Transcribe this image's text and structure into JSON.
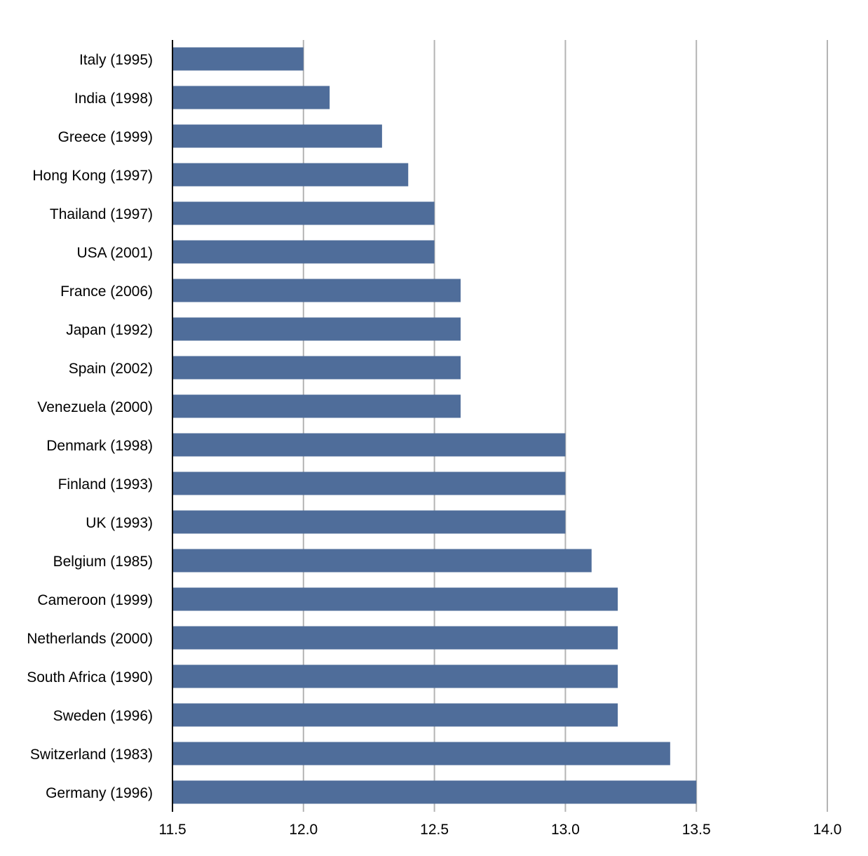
{
  "chart_data": {
    "type": "bar",
    "orientation": "horizontal",
    "title": "",
    "xlabel": "",
    "ylabel": "",
    "xlim": [
      11.5,
      14.0
    ],
    "x_ticks": [
      "11.5",
      "12.0",
      "12.5",
      "13.0",
      "13.5",
      "14.0"
    ],
    "grid": true,
    "legend": "none",
    "bar_color": "#4f6d9a",
    "categories": [
      "Italy (1995)",
      "India (1998)",
      "Greece (1999)",
      "Hong Kong (1997)",
      "Thailand (1997)",
      "USA (2001)",
      "France (2006)",
      "Japan (1992)",
      "Spain (2002)",
      "Venezuela (2000)",
      "Denmark (1998)",
      "Finland (1993)",
      "UK (1993)",
      "Belgium (1985)",
      "Cameroon (1999)",
      "Netherlands (2000)",
      "South Africa (1990)",
      "Sweden (1996)",
      "Switzerland (1983)",
      "Germany (1996)"
    ],
    "values": [
      12.0,
      12.1,
      12.3,
      12.4,
      12.5,
      12.5,
      12.6,
      12.6,
      12.6,
      12.6,
      13.0,
      13.0,
      13.0,
      13.1,
      13.2,
      13.2,
      13.2,
      13.2,
      13.4,
      13.5
    ]
  }
}
